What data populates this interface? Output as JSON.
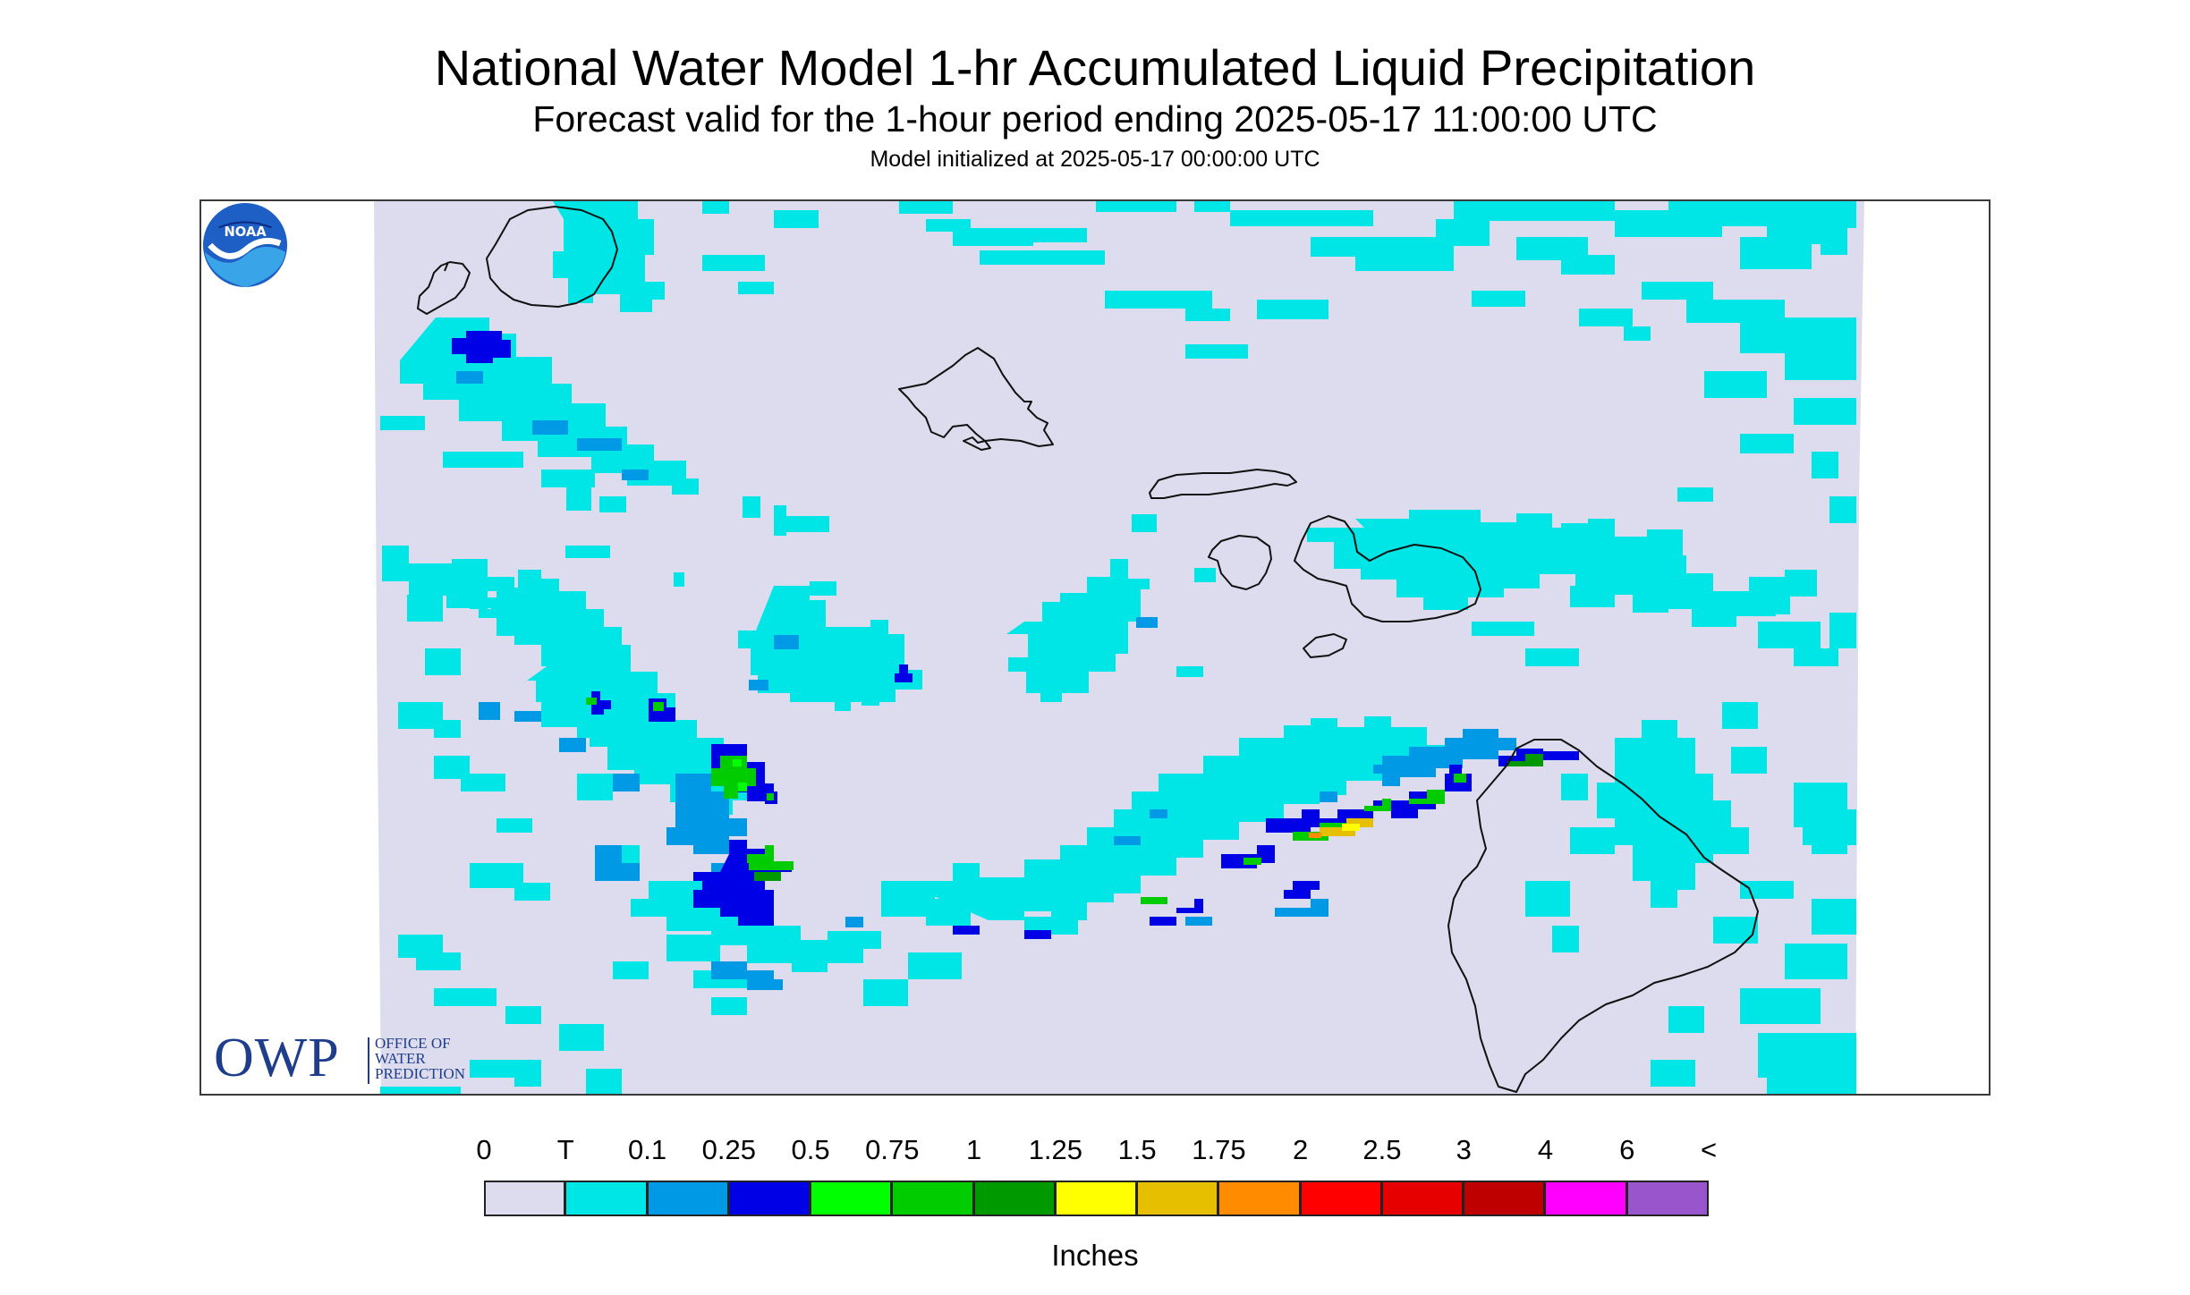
{
  "header": {
    "title": "National Water Model 1-hr Accumulated Liquid Precipitation",
    "subtitle": "Forecast valid for the 1-hour period ending 2025-05-17 11:00:00 UTC",
    "init": "Model initialized at 2025-05-17 00:00:00 UTC"
  },
  "map": {
    "background_color": "#dcdcee",
    "coastline_color": "#111111",
    "islands": [
      "Niihau",
      "Kauai",
      "Oahu",
      "Molokai",
      "Lanai",
      "Maui",
      "Kahoolawe",
      "Hawaii"
    ]
  },
  "logos": {
    "owp_letters": "OWP",
    "owp_line1": "OFFICE OF",
    "owp_line2": "WATER",
    "owp_line3": "PREDICTION",
    "noaa_letters": "NOAA"
  },
  "legend": {
    "units": "Inches",
    "ticks": [
      "0",
      "T",
      "0.1",
      "0.25",
      "0.5",
      "0.75",
      "1",
      "1.25",
      "1.5",
      "1.75",
      "2",
      "2.5",
      "3",
      "4",
      "6",
      "<"
    ],
    "colors": [
      "#dcdcee",
      "#00e6e6",
      "#0099e6",
      "#0000e6",
      "#00ff00",
      "#00cc00",
      "#009900",
      "#ffff00",
      "#e6bf00",
      "#ff8c00",
      "#ff0000",
      "#e60000",
      "#bf0000",
      "#ff00ff",
      "#9955cc"
    ]
  }
}
